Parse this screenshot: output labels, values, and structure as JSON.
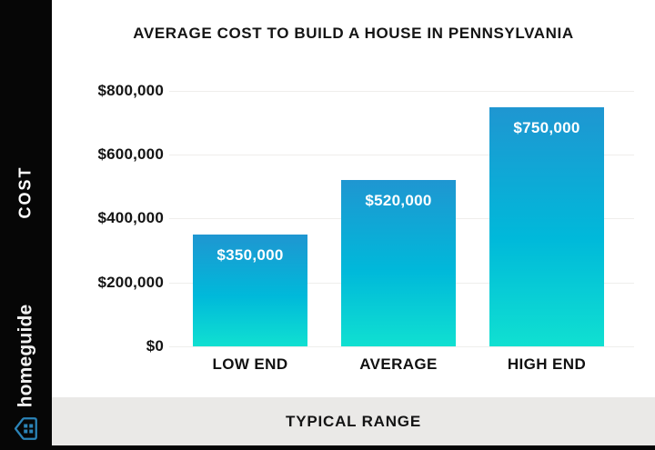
{
  "header": {
    "title": "AVERAGE COST TO BUILD A HOUSE IN PENNSYLVANIA"
  },
  "sidebar": {
    "category_label": "COST",
    "brand_name": "homeguide"
  },
  "footer": {
    "label": "TYPICAL RANGE"
  },
  "chart_data": {
    "type": "bar",
    "title": "AVERAGE COST TO BUILD A HOUSE IN PENNSYLVANIA",
    "categories": [
      "LOW END",
      "AVERAGE",
      "HIGH END"
    ],
    "values": [
      350000,
      520000,
      750000
    ],
    "value_labels": [
      "$350,000",
      "$520,000",
      "$750,000"
    ],
    "xlabel": "TYPICAL RANGE",
    "ylabel": "COST",
    "ylim": [
      0,
      800000
    ],
    "grid": true,
    "y_ticks": [
      {
        "value": 800000,
        "label": "$800,000"
      },
      {
        "value": 600000,
        "label": "$600,000"
      },
      {
        "value": 400000,
        "label": "$400,000"
      },
      {
        "value": 200000,
        "label": "$200,000"
      },
      {
        "value": 0,
        "label": "$0"
      }
    ],
    "colors": {
      "bar_gradient_top": "#1f96d1",
      "bar_gradient_mid": "#00b9da",
      "bar_gradient_bottom": "#10e0d1",
      "gridline": "#efeeec",
      "sidebar_background": "#060606",
      "footer_background": "#eae9e7",
      "text": "#141414",
      "bar_label_text": "#ffffff",
      "brand_icon_blue": "#2b84b8"
    }
  }
}
